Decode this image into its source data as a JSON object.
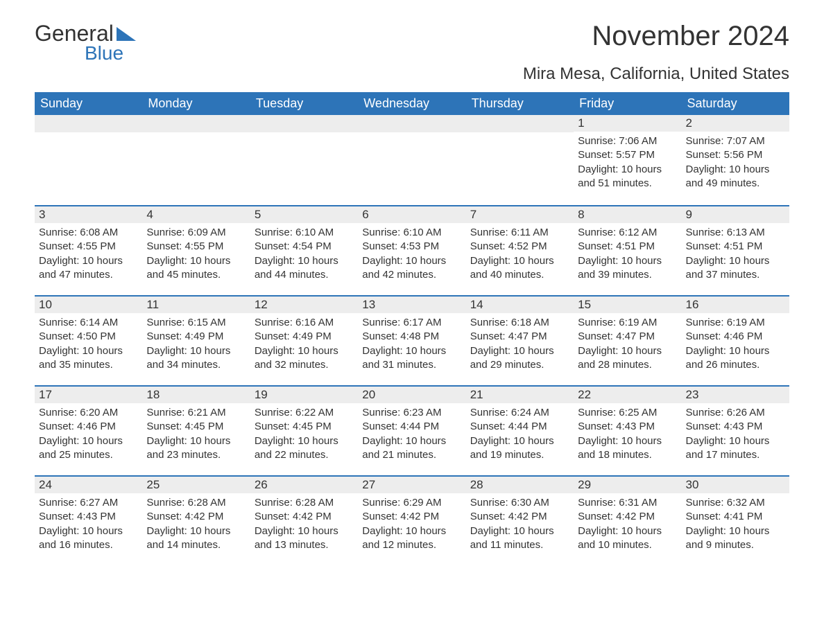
{
  "logo": {
    "word1": "General",
    "word2": "Blue"
  },
  "title": "November 2024",
  "location": "Mira Mesa, California, United States",
  "colors": {
    "header_bg": "#2d74b8",
    "header_text": "#ffffff",
    "daynum_bg": "#ededed",
    "border": "#2d74b8",
    "text": "#333333",
    "logo_accent": "#2d74b8"
  },
  "day_names": [
    "Sunday",
    "Monday",
    "Tuesday",
    "Wednesday",
    "Thursday",
    "Friday",
    "Saturday"
  ],
  "weeks": [
    [
      {
        "empty": true
      },
      {
        "empty": true
      },
      {
        "empty": true
      },
      {
        "empty": true
      },
      {
        "empty": true
      },
      {
        "num": "1",
        "sunrise": "Sunrise: 7:06 AM",
        "sunset": "Sunset: 5:57 PM",
        "daylight": "Daylight: 10 hours and 51 minutes."
      },
      {
        "num": "2",
        "sunrise": "Sunrise: 7:07 AM",
        "sunset": "Sunset: 5:56 PM",
        "daylight": "Daylight: 10 hours and 49 minutes."
      }
    ],
    [
      {
        "num": "3",
        "sunrise": "Sunrise: 6:08 AM",
        "sunset": "Sunset: 4:55 PM",
        "daylight": "Daylight: 10 hours and 47 minutes."
      },
      {
        "num": "4",
        "sunrise": "Sunrise: 6:09 AM",
        "sunset": "Sunset: 4:55 PM",
        "daylight": "Daylight: 10 hours and 45 minutes."
      },
      {
        "num": "5",
        "sunrise": "Sunrise: 6:10 AM",
        "sunset": "Sunset: 4:54 PM",
        "daylight": "Daylight: 10 hours and 44 minutes."
      },
      {
        "num": "6",
        "sunrise": "Sunrise: 6:10 AM",
        "sunset": "Sunset: 4:53 PM",
        "daylight": "Daylight: 10 hours and 42 minutes."
      },
      {
        "num": "7",
        "sunrise": "Sunrise: 6:11 AM",
        "sunset": "Sunset: 4:52 PM",
        "daylight": "Daylight: 10 hours and 40 minutes."
      },
      {
        "num": "8",
        "sunrise": "Sunrise: 6:12 AM",
        "sunset": "Sunset: 4:51 PM",
        "daylight": "Daylight: 10 hours and 39 minutes."
      },
      {
        "num": "9",
        "sunrise": "Sunrise: 6:13 AM",
        "sunset": "Sunset: 4:51 PM",
        "daylight": "Daylight: 10 hours and 37 minutes."
      }
    ],
    [
      {
        "num": "10",
        "sunrise": "Sunrise: 6:14 AM",
        "sunset": "Sunset: 4:50 PM",
        "daylight": "Daylight: 10 hours and 35 minutes."
      },
      {
        "num": "11",
        "sunrise": "Sunrise: 6:15 AM",
        "sunset": "Sunset: 4:49 PM",
        "daylight": "Daylight: 10 hours and 34 minutes."
      },
      {
        "num": "12",
        "sunrise": "Sunrise: 6:16 AM",
        "sunset": "Sunset: 4:49 PM",
        "daylight": "Daylight: 10 hours and 32 minutes."
      },
      {
        "num": "13",
        "sunrise": "Sunrise: 6:17 AM",
        "sunset": "Sunset: 4:48 PM",
        "daylight": "Daylight: 10 hours and 31 minutes."
      },
      {
        "num": "14",
        "sunrise": "Sunrise: 6:18 AM",
        "sunset": "Sunset: 4:47 PM",
        "daylight": "Daylight: 10 hours and 29 minutes."
      },
      {
        "num": "15",
        "sunrise": "Sunrise: 6:19 AM",
        "sunset": "Sunset: 4:47 PM",
        "daylight": "Daylight: 10 hours and 28 minutes."
      },
      {
        "num": "16",
        "sunrise": "Sunrise: 6:19 AM",
        "sunset": "Sunset: 4:46 PM",
        "daylight": "Daylight: 10 hours and 26 minutes."
      }
    ],
    [
      {
        "num": "17",
        "sunrise": "Sunrise: 6:20 AM",
        "sunset": "Sunset: 4:46 PM",
        "daylight": "Daylight: 10 hours and 25 minutes."
      },
      {
        "num": "18",
        "sunrise": "Sunrise: 6:21 AM",
        "sunset": "Sunset: 4:45 PM",
        "daylight": "Daylight: 10 hours and 23 minutes."
      },
      {
        "num": "19",
        "sunrise": "Sunrise: 6:22 AM",
        "sunset": "Sunset: 4:45 PM",
        "daylight": "Daylight: 10 hours and 22 minutes."
      },
      {
        "num": "20",
        "sunrise": "Sunrise: 6:23 AM",
        "sunset": "Sunset: 4:44 PM",
        "daylight": "Daylight: 10 hours and 21 minutes."
      },
      {
        "num": "21",
        "sunrise": "Sunrise: 6:24 AM",
        "sunset": "Sunset: 4:44 PM",
        "daylight": "Daylight: 10 hours and 19 minutes."
      },
      {
        "num": "22",
        "sunrise": "Sunrise: 6:25 AM",
        "sunset": "Sunset: 4:43 PM",
        "daylight": "Daylight: 10 hours and 18 minutes."
      },
      {
        "num": "23",
        "sunrise": "Sunrise: 6:26 AM",
        "sunset": "Sunset: 4:43 PM",
        "daylight": "Daylight: 10 hours and 17 minutes."
      }
    ],
    [
      {
        "num": "24",
        "sunrise": "Sunrise: 6:27 AM",
        "sunset": "Sunset: 4:43 PM",
        "daylight": "Daylight: 10 hours and 16 minutes."
      },
      {
        "num": "25",
        "sunrise": "Sunrise: 6:28 AM",
        "sunset": "Sunset: 4:42 PM",
        "daylight": "Daylight: 10 hours and 14 minutes."
      },
      {
        "num": "26",
        "sunrise": "Sunrise: 6:28 AM",
        "sunset": "Sunset: 4:42 PM",
        "daylight": "Daylight: 10 hours and 13 minutes."
      },
      {
        "num": "27",
        "sunrise": "Sunrise: 6:29 AM",
        "sunset": "Sunset: 4:42 PM",
        "daylight": "Daylight: 10 hours and 12 minutes."
      },
      {
        "num": "28",
        "sunrise": "Sunrise: 6:30 AM",
        "sunset": "Sunset: 4:42 PM",
        "daylight": "Daylight: 10 hours and 11 minutes."
      },
      {
        "num": "29",
        "sunrise": "Sunrise: 6:31 AM",
        "sunset": "Sunset: 4:42 PM",
        "daylight": "Daylight: 10 hours and 10 minutes."
      },
      {
        "num": "30",
        "sunrise": "Sunrise: 6:32 AM",
        "sunset": "Sunset: 4:41 PM",
        "daylight": "Daylight: 10 hours and 9 minutes."
      }
    ]
  ]
}
